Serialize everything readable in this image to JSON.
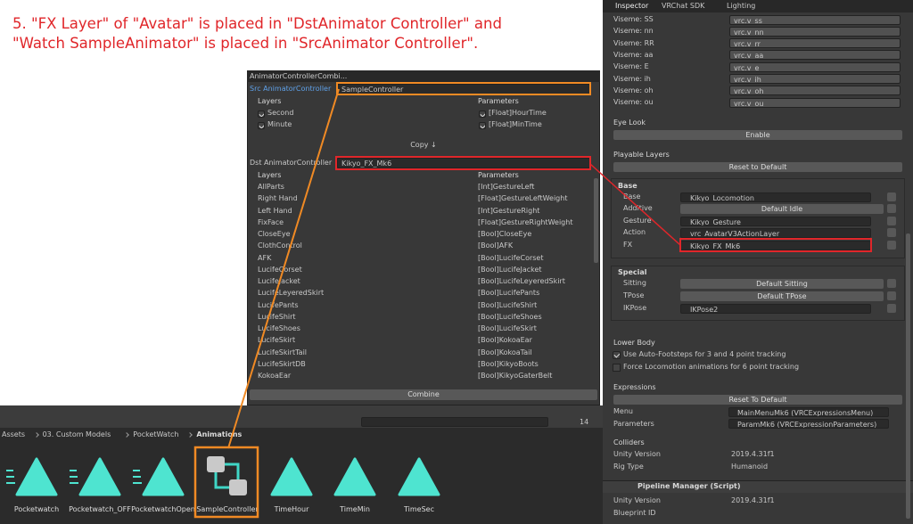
{
  "annotation": {
    "lines": [
      "5. \"FX Layer\" of \"Avatar\" is placed in \"DstAnimator Controller\" and",
      "\"Watch SampleAnimator\" is placed in \"SrcAnimator Controller\"."
    ]
  },
  "combiner": {
    "title": "AnimatorControllerCombi...",
    "src_label": "Src AnimatorController",
    "src_value": "SampleController",
    "layers_header": "Layers",
    "parameters_header": "Parameters",
    "src_layers": [
      "Second",
      "Minute"
    ],
    "src_parameters": [
      "[Float]HourTime",
      "[Float]MinTime"
    ],
    "copy_button": "Copy ↓",
    "dst_label": "Dst AnimatorController",
    "dst_value": "Kikyo_FX_Mk6",
    "dst_layers": [
      "AllParts",
      "Right Hand",
      "Left Hand",
      "FixFace",
      "CloseEye",
      "ClothControl",
      "AFK",
      "LucifeCorset",
      "LucifeJacket",
      "LucifeLeyeredSkirt",
      "LucifePants",
      "LucifeShirt",
      "LucifeShoes",
      "LucifeSkirt",
      "LucifeSkirtTail",
      "LucifeSkirtDB",
      "KokoaEar"
    ],
    "dst_parameters": [
      "[Int]GestureLeft",
      "[Float]GestureLeftWeight",
      "[Int]GestureRight",
      "[Float]GestureRightWeight",
      "[Bool]CloseEye",
      "[Bool]AFK",
      "[Bool]LucifeCorset",
      "[Bool]LucifeJacket",
      "[Bool]LucifeLeyeredSkirt",
      "[Bool]LucifePants",
      "[Bool]LucifeShirt",
      "[Bool]LucifeShoes",
      "[Bool]LucifeSkirt",
      "[Bool]KokoaEar",
      "[Bool]KokoaTail",
      "[Bool]KikyoBoots",
      "[Bool]KikyoGaterBelt"
    ],
    "combine_button": "Combine"
  },
  "inspector": {
    "tabs": [
      "Inspector",
      "VRChat SDK",
      "Lighting"
    ],
    "visemes": [
      {
        "label": "Viseme: SS",
        "value": "vrc.v_ss"
      },
      {
        "label": "Viseme: nn",
        "value": "vrc.v_nn"
      },
      {
        "label": "Viseme: RR",
        "value": "vrc.v_rr"
      },
      {
        "label": "Viseme: aa",
        "value": "vrc.v_aa"
      },
      {
        "label": "Viseme: E",
        "value": "vrc.v_e"
      },
      {
        "label": "Viseme: ih",
        "value": "vrc.v_ih"
      },
      {
        "label": "Viseme: oh",
        "value": "vrc.v_oh"
      },
      {
        "label": "Viseme: ou",
        "value": "vrc.v_ou"
      }
    ],
    "eye_look": "Eye Look",
    "enable_button": "Enable",
    "playable_layers": "Playable Layers",
    "reset_button": "Reset to Default",
    "base_header": "Base",
    "base_rows": [
      {
        "label": "Base",
        "value": "Kikyo_Locomotion"
      },
      {
        "label": "Additive",
        "value": "Default Idle"
      },
      {
        "label": "Gesture",
        "value": "Kikyo_Gesture"
      },
      {
        "label": "Action",
        "value": "vrc_AvatarV3ActionLayer"
      },
      {
        "label": "FX",
        "value": "Kikyo_FX_Mk6"
      }
    ],
    "special_header": "Special",
    "special_rows": [
      {
        "label": "Sitting",
        "value": "Default Sitting"
      },
      {
        "label": "TPose",
        "value": "Default TPose"
      },
      {
        "label": "IKPose",
        "value": "IKPose2"
      }
    ],
    "lower_body": "Lower Body",
    "lower_body_options": [
      "Use Auto-Footsteps for 3 and 4 point tracking",
      "Force Locomotion animations for 6 point tracking"
    ],
    "expressions": "Expressions",
    "expressions_reset": "Reset To Default",
    "expression_rows": [
      {
        "label": "Menu",
        "value": "MainMenuMk6 (VRCExpressionsMenu)"
      },
      {
        "label": "Parameters",
        "value": "ParamMk6 (VRCExpressionParameters)"
      }
    ],
    "colliders": "Colliders",
    "info_rows": [
      {
        "label": "Unity Version",
        "value": "2019.4.31f1"
      },
      {
        "label": "Rig Type",
        "value": "Humanoid"
      }
    ],
    "pipeline_title": "Pipeline Manager (Script)",
    "pipeline_rows": [
      {
        "label": "Unity Version",
        "value": "2019.4.31f1"
      },
      {
        "label": "Blueprint ID"
      }
    ]
  },
  "project": {
    "breadcrumb": [
      "Assets",
      "03. Custom Models",
      "PocketWatch",
      "Animations"
    ],
    "asset_count": 14,
    "assets": [
      "Pocketwatch",
      "Pocketwatch_OFF",
      "PocketwatchOpen",
      "SampleController",
      "TimeHour",
      "TimeMin",
      "TimeSec"
    ]
  }
}
